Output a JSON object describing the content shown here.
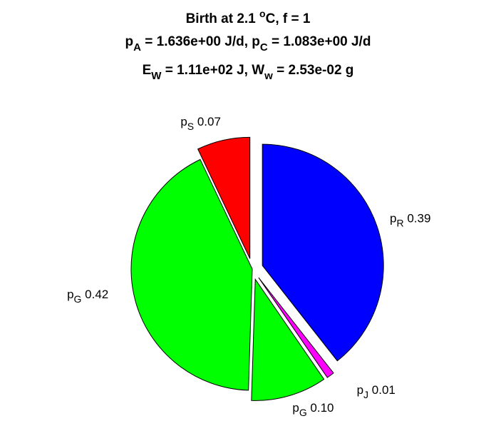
{
  "chart_data": {
    "type": "pie",
    "title": {
      "line1": {
        "pre": "Birth at 2.1 ",
        "sup": "o",
        "post": "C, f = 1"
      },
      "line2": {
        "a": "p",
        "a_sub": "A",
        "b": " = 1.636e+00 J/d, p",
        "b_sub": "C",
        "c": " = 1.083e+00 J/d"
      },
      "line3": {
        "a": "E",
        "a_sub": "W",
        "b": " = 1.11e+02 J, W",
        "b_sub": "w",
        "c": " = 2.53e-02 g"
      }
    },
    "slices": [
      {
        "name": "p",
        "sub": "R",
        "value": 0.39,
        "value_label": "0.39",
        "color": "#0000ff",
        "exploded": true
      },
      {
        "name": "p",
        "sub": "J",
        "value": 0.01,
        "value_label": "0.01",
        "color": "#ff00ff",
        "exploded": true
      },
      {
        "name": "p",
        "sub": "G",
        "value": 0.1,
        "value_label": "0.10",
        "color": "#00ff00",
        "exploded": true
      },
      {
        "name": "p",
        "sub": "G",
        "value": 0.42,
        "value_label": "0.42",
        "color": "#00ff00",
        "exploded": false
      },
      {
        "name": "p",
        "sub": "S",
        "value": 0.07,
        "value_label": "0.07",
        "color": "#ff0000",
        "exploded": true
      }
    ]
  }
}
